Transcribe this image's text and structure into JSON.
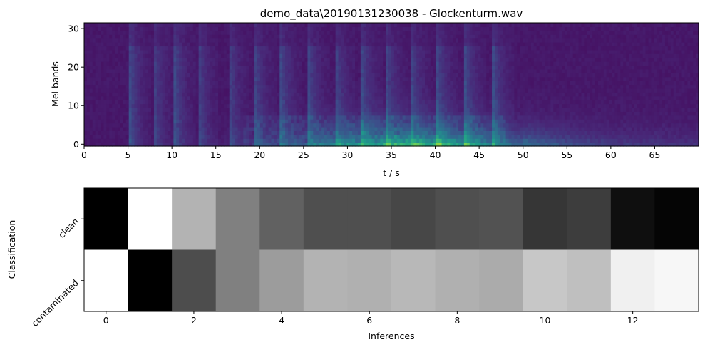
{
  "spectrogram": {
    "title": "demo_data\\20190131230038 - Glockenturm.wav",
    "type": "heatmap",
    "xlabel": "t / s",
    "ylabel": "Mel bands",
    "xlim": [
      0,
      70
    ],
    "ylim": [
      -0.5,
      31.5
    ],
    "xticks": [
      0,
      5,
      10,
      15,
      20,
      25,
      30,
      35,
      40,
      45,
      50,
      55,
      60,
      65
    ],
    "yticks": [
      0,
      10,
      20,
      30
    ],
    "colormap": "viridis",
    "bands": 32,
    "onsets_s": [
      5.2,
      7.8,
      10.3,
      12.9,
      16.4,
      19.4,
      22.4,
      25.5,
      28.6,
      31.6,
      34.4,
      37.2,
      40.2,
      43.4,
      46.6
    ]
  },
  "classification": {
    "type": "heatmap",
    "xlabel": "Inferences",
    "ylabel": "Classification",
    "rows": [
      "clean",
      "contaminated"
    ],
    "xticks": [
      0,
      2,
      4,
      6,
      8,
      10,
      12
    ],
    "xlim": [
      -0.5,
      13.5
    ],
    "colormap": "gray",
    "values": {
      "clean": [
        0.0,
        1.0,
        0.7,
        0.5,
        0.38,
        0.31,
        0.31,
        0.28,
        0.31,
        0.32,
        0.21,
        0.24,
        0.06,
        0.02
      ],
      "contaminated": [
        1.0,
        0.0,
        0.3,
        0.5,
        0.61,
        0.7,
        0.69,
        0.72,
        0.69,
        0.67,
        0.78,
        0.75,
        0.94,
        0.97
      ]
    }
  }
}
